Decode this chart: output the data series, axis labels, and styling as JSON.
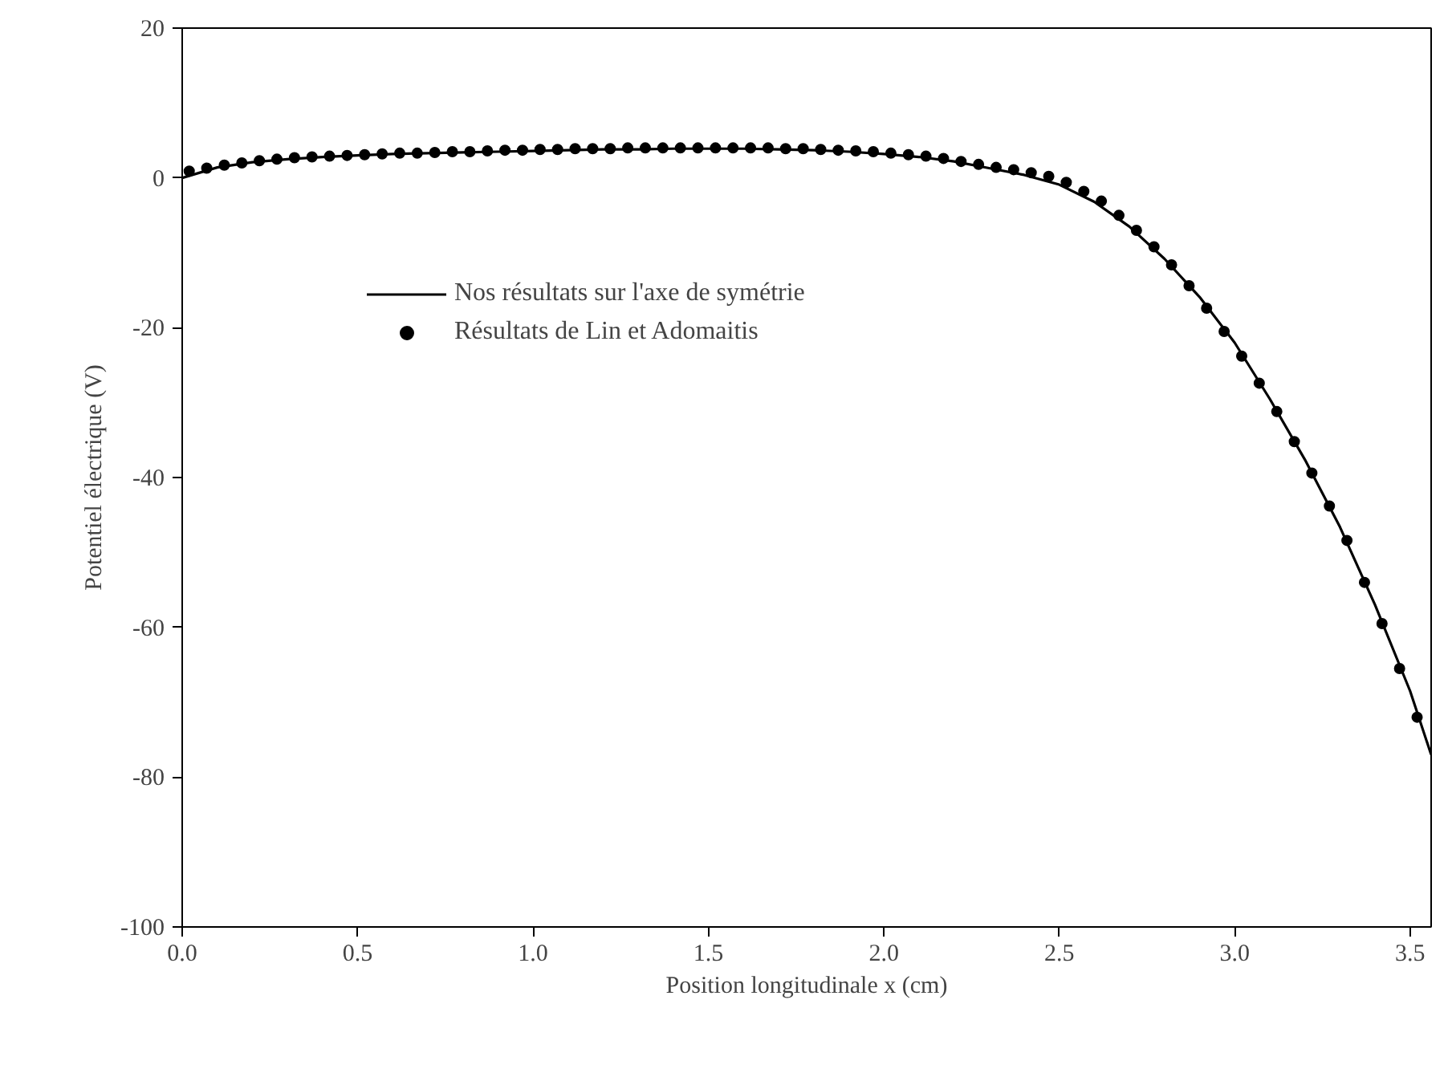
{
  "chart_data": {
    "type": "line",
    "xlabel": "Position longitudinale x (cm)",
    "ylabel": "Potentiel électrique (V)",
    "xlim": [
      0,
      3.56
    ],
    "ylim": [
      -100,
      20
    ],
    "xticks": [
      {
        "value": 0,
        "label": "0.0"
      },
      {
        "value": 0.5,
        "label": "0.5"
      },
      {
        "value": 1,
        "label": "1.0"
      },
      {
        "value": 1.5,
        "label": "1.5"
      },
      {
        "value": 2,
        "label": "2.0"
      },
      {
        "value": 2.5,
        "label": "2.5"
      },
      {
        "value": 3,
        "label": "3.0"
      },
      {
        "value": 3.5,
        "label": "3.5"
      }
    ],
    "yticks": [
      -100,
      -80,
      -60,
      -40,
      -20,
      0,
      20
    ],
    "grid": false,
    "legend": "top left",
    "series": [
      {
        "name": "Nos résultats sur l'axe de symétrie",
        "color": "#000000",
        "line_style": "solid",
        "marker": "none",
        "x": [
          0,
          0.1,
          0.2,
          0.3,
          0.4,
          0.5,
          0.6,
          0.7,
          0.8,
          0.9,
          1.0,
          1.1,
          1.2,
          1.3,
          1.4,
          1.5,
          1.6,
          1.7,
          1.8,
          1.9,
          2.0,
          2.1,
          2.2,
          2.3,
          2.4,
          2.5,
          2.6,
          2.7,
          2.8,
          2.9,
          3.0,
          3.1,
          3.2,
          3.3,
          3.4,
          3.5,
          3.56
        ],
        "values": [
          0,
          1.4,
          2.1,
          2.5,
          2.8,
          3.0,
          3.2,
          3.3,
          3.4,
          3.5,
          3.6,
          3.7,
          3.8,
          3.8,
          3.9,
          3.9,
          3.9,
          3.8,
          3.7,
          3.5,
          3.2,
          2.8,
          2.2,
          1.3,
          0.4,
          -0.9,
          -3.2,
          -6.5,
          -10.8,
          -15.9,
          -22,
          -29.5,
          -37.6,
          -46.6,
          -57,
          -68.5,
          -77
        ]
      },
      {
        "name": "Résultats de Lin et Adomaitis",
        "color": "#000000",
        "type": "scatter",
        "marker": "circle",
        "x": [
          0.02,
          0.07,
          0.12,
          0.17,
          0.22,
          0.27,
          0.32,
          0.37,
          0.42,
          0.47,
          0.52,
          0.57,
          0.62,
          0.67,
          0.72,
          0.77,
          0.82,
          0.87,
          0.92,
          0.97,
          1.02,
          1.07,
          1.12,
          1.17,
          1.22,
          1.27,
          1.32,
          1.37,
          1.42,
          1.47,
          1.52,
          1.57,
          1.62,
          1.67,
          1.72,
          1.77,
          1.82,
          1.87,
          1.92,
          1.97,
          2.02,
          2.07,
          2.12,
          2.17,
          2.22,
          2.27,
          2.32,
          2.37,
          2.42,
          2.47,
          2.52,
          2.57,
          2.62,
          2.67,
          2.72,
          2.77,
          2.82,
          2.87,
          2.92,
          2.97,
          3.02,
          3.07,
          3.12,
          3.17,
          3.22,
          3.27,
          3.32,
          3.37,
          3.42,
          3.47,
          3.52
        ],
        "values": [
          0.9,
          1.3,
          1.7,
          2.0,
          2.3,
          2.5,
          2.7,
          2.8,
          2.9,
          3.0,
          3.1,
          3.2,
          3.3,
          3.3,
          3.4,
          3.5,
          3.5,
          3.6,
          3.7,
          3.7,
          3.8,
          3.8,
          3.9,
          3.9,
          3.9,
          4.0,
          4.0,
          4.0,
          4.0,
          4.0,
          4.0,
          4.0,
          4.0,
          4.0,
          3.9,
          3.9,
          3.8,
          3.7,
          3.6,
          3.5,
          3.3,
          3.1,
          2.9,
          2.6,
          2.2,
          1.8,
          1.4,
          1.1,
          0.7,
          0.2,
          -0.6,
          -1.8,
          -3.1,
          -5.0,
          -7.0,
          -9.2,
          -11.6,
          -14.4,
          -17.4,
          -20.5,
          -23.8,
          -27.4,
          -31.2,
          -35.2,
          -39.4,
          -43.8,
          -48.4,
          -54,
          -59.5,
          -65.5,
          -72
        ]
      }
    ]
  }
}
